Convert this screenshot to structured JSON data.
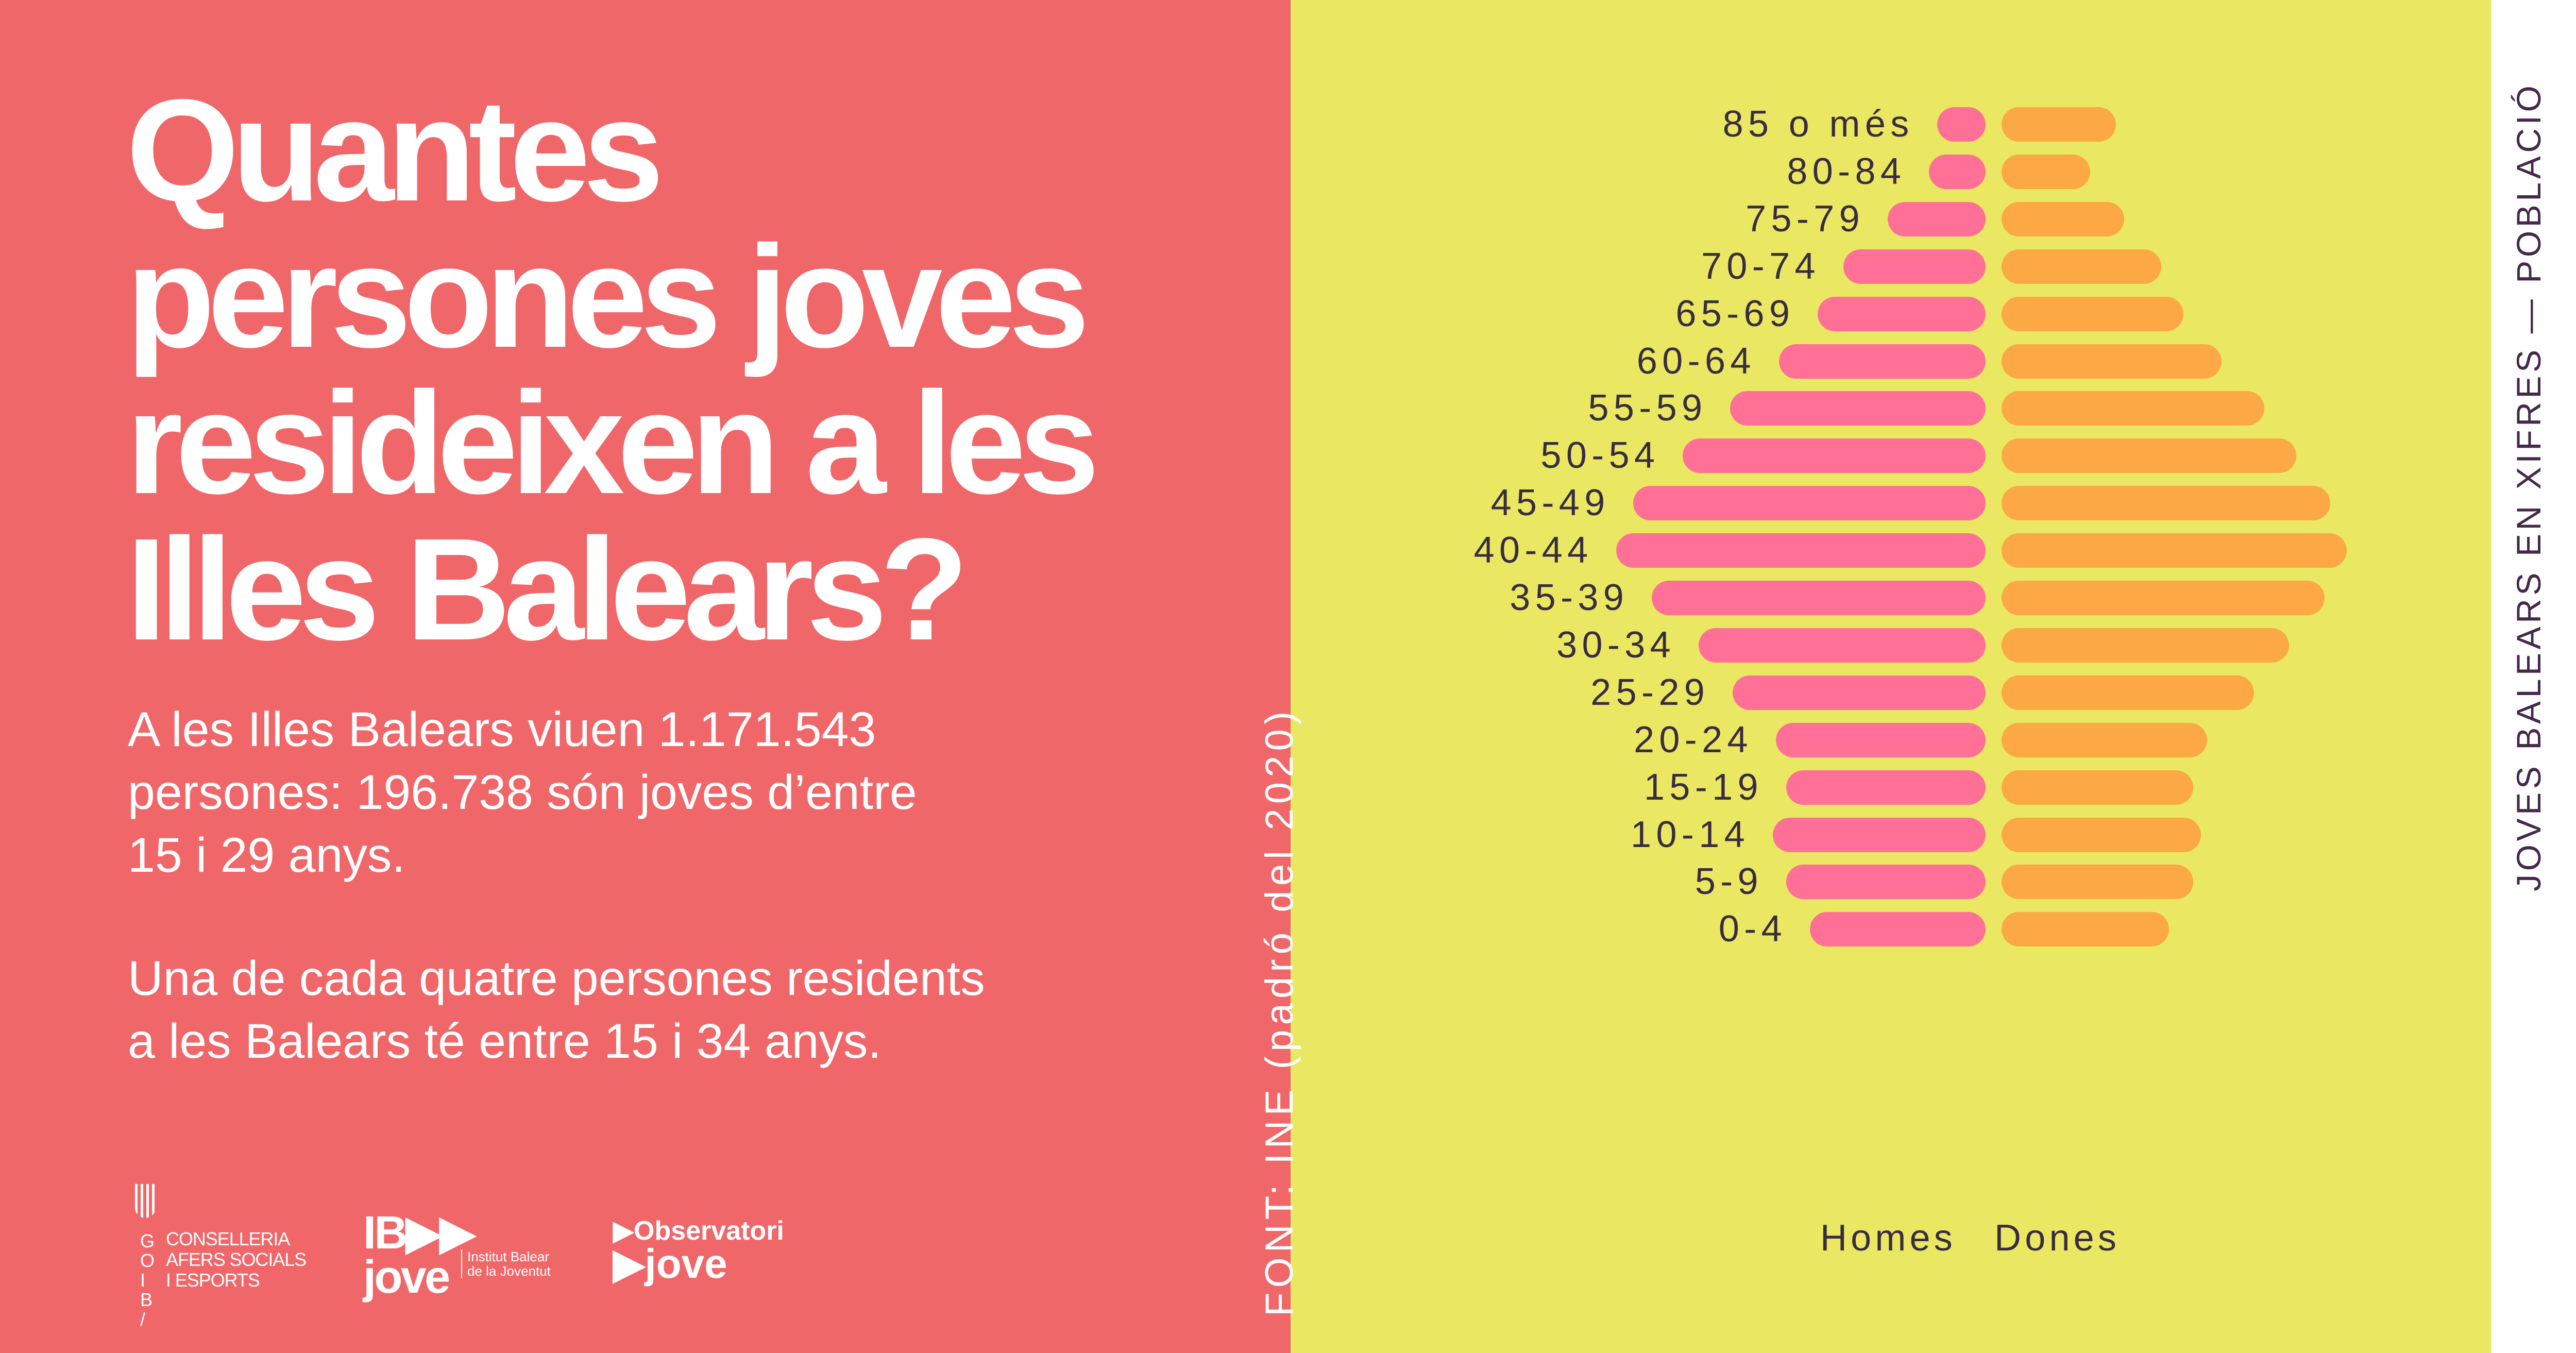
{
  "title": [
    "Quantes",
    "persones joves",
    "resideixen a les",
    "Illes Balears?"
  ],
  "paragraph1": [
    "A les Illes Balears viuen 1.171.543",
    "persones: 196.738 són joves d’entre",
    "15 i 29 anys."
  ],
  "paragraph2": [
    "Una de cada quatre persones residents",
    "a les Balears té entre 15 i 34 anys."
  ],
  "source": "FONT: INE (padró del 2020)",
  "series_title": "JOVES BALEARS EN XIFRES — POBLACIÓ",
  "logos": {
    "goib_letters": "G O I B /",
    "goib_text": [
      "CONSELLERIA",
      "AFERS SOCIALS",
      "I ESPORTS"
    ],
    "ibjove": [
      "IB▶▶",
      "jove"
    ],
    "ibjove_sub": [
      "Institut Balear",
      "de la Joventut"
    ],
    "observatori": [
      "▶Observatori",
      "▶jove"
    ]
  },
  "colors": {
    "left_bg": "#F0676A",
    "right_bg": "#EAE862",
    "homes": "#FF7096",
    "dones": "#FBA845",
    "text_dark": "#3b2b40"
  },
  "chart_data": {
    "type": "bar",
    "orientation": "horizontal-population-pyramid",
    "value_note": "relative bar lengths (no axis printed)",
    "categories": [
      "85 o més",
      "80-84",
      "75-79",
      "70-74",
      "65-69",
      "60-64",
      "55-59",
      "50-54",
      "45-49",
      "40-44",
      "35-39",
      "30-34",
      "25-29",
      "20-24",
      "15-19",
      "10-14",
      "5-9",
      "0-4"
    ],
    "series": [
      {
        "name": "Homes",
        "values": [
          80,
          93,
          161,
          234,
          276,
          340,
          420,
          498,
          580,
          608,
          549,
          472,
          416,
          345,
          328,
          350,
          328,
          289
        ]
      },
      {
        "name": "Dones",
        "values": [
          188,
          146,
          202,
          263,
          299,
          362,
          432,
          485,
          541,
          568,
          531,
          473,
          415,
          338,
          315,
          328,
          315,
          275
        ]
      }
    ],
    "legend_position": "bottom",
    "grid": false
  }
}
